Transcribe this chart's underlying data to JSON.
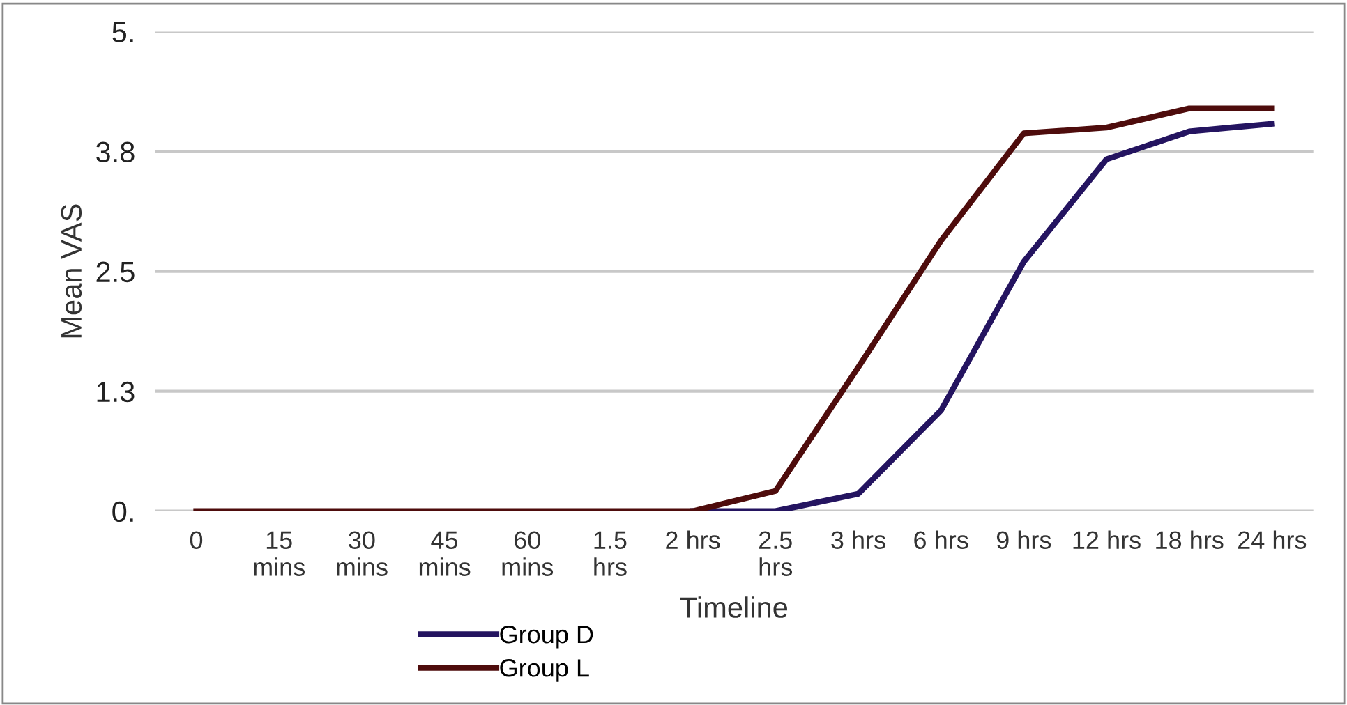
{
  "chart_data": {
    "type": "line",
    "xlabel": "Timeline",
    "ylabel": "Mean VAS",
    "categories": [
      "0",
      "15\nmins",
      "30\nmins",
      "45\nmins",
      "60\nmins",
      "1.5\nhrs",
      "2 hrs",
      "2.5\nhrs",
      "3 hrs",
      "6 hrs",
      "9 hrs",
      "12 hrs",
      "18 hrs",
      "24 hrs"
    ],
    "series": [
      {
        "name": "Group D",
        "color": "#241460",
        "values": [
          null,
          null,
          null,
          null,
          null,
          null,
          0,
          0,
          0.18,
          1.05,
          2.6,
          3.67,
          3.96,
          4.04
        ]
      },
      {
        "name": "Group L",
        "color": "#4e0c0c",
        "values": [
          0,
          0,
          0,
          0,
          0,
          0,
          0,
          0.21,
          1.5,
          2.82,
          3.94,
          4.0,
          4.2,
          4.2
        ]
      }
    ],
    "ylim": [
      0,
      5
    ],
    "yticks": [
      {
        "value": 0,
        "label": "0."
      },
      {
        "value": 1.25,
        "label": "1.3"
      },
      {
        "value": 2.5,
        "label": "2.5"
      },
      {
        "value": 3.75,
        "label": "3.8"
      },
      {
        "value": 5,
        "label": "5."
      }
    ],
    "grid": "y",
    "legend": "bottom left",
    "marker": "none",
    "line_style": "solid"
  }
}
